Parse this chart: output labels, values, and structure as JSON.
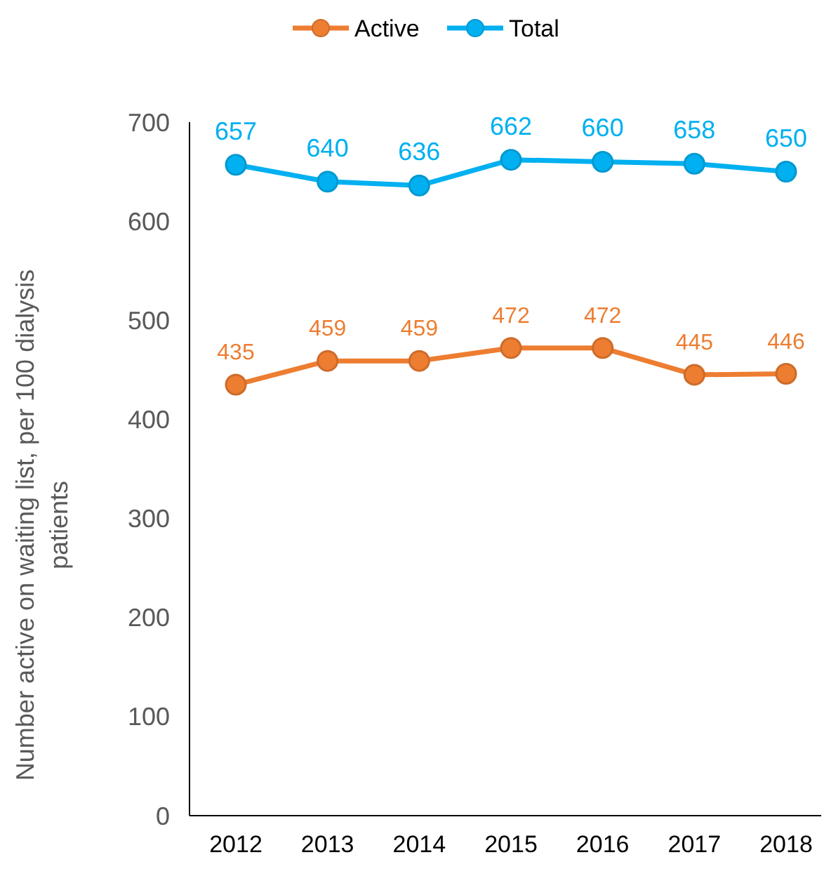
{
  "chart_data": {
    "type": "line",
    "ylabel": "Number active on waiting list, per 100 dialysis patients",
    "categories": [
      "2012",
      "2013",
      "2014",
      "2015",
      "2016",
      "2017",
      "2018"
    ],
    "series": [
      {
        "name": "Active",
        "color": "#ed7d31",
        "values": [
          435,
          459,
          459,
          472,
          472,
          445,
          446
        ]
      },
      {
        "name": "Total",
        "color": "#00b0f0",
        "values": [
          657,
          640,
          636,
          662,
          660,
          658,
          650
        ]
      }
    ],
    "ylim": [
      0,
      700
    ],
    "yticks": [
      0,
      100,
      200,
      300,
      400,
      500,
      600,
      700
    ],
    "grid": false,
    "legend": "top",
    "marker": "circle",
    "line_style": "solid",
    "data_labels": true
  }
}
